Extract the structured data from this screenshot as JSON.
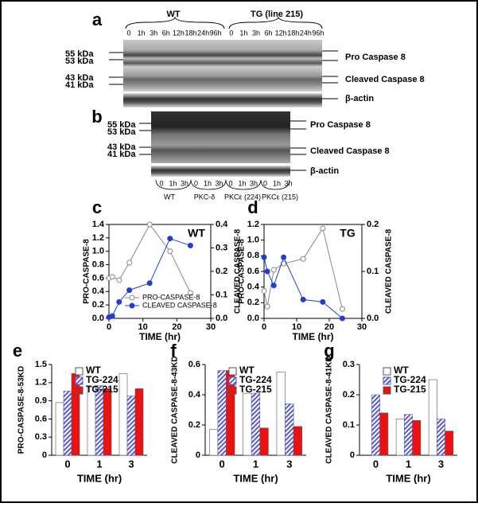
{
  "figure": {
    "a": {
      "letter": "a",
      "groups": [
        "WT",
        "TG (line 215)"
      ],
      "lanes": [
        "0",
        "1h",
        "3h",
        "6h",
        "12h",
        "18h",
        "24h",
        "96h",
        "0",
        "1h",
        "3h",
        "6h",
        "12h",
        "18h",
        "24h",
        "96h"
      ],
      "markers": [
        "55 kDa",
        "53 kDa",
        "43 kDa",
        "41 kDa"
      ],
      "bands": [
        "Pro Caspase 8",
        "Cleaved Caspase 8",
        "β-actin"
      ]
    },
    "b": {
      "letter": "b",
      "lanes": [
        "0",
        "1h",
        "3h",
        "0",
        "1h",
        "3h",
        "0",
        "1h",
        "3h",
        "0",
        "1h",
        "3h"
      ],
      "groups": [
        "WT",
        "PKC-δ",
        "PKCε (224)",
        "PKCε (215)"
      ],
      "markers": [
        "55 kDa",
        "53 kDa",
        "43 kDa",
        "41 kDa"
      ],
      "bands": [
        "Pro Caspase 8",
        "Cleaved Caspase 8",
        "β-actin"
      ]
    }
  },
  "chart_data": [
    {
      "type": "line",
      "panel": "c",
      "title": "WT",
      "xlabel": "TIME (hr)",
      "ylabel": "PRO-CASPASE-8",
      "y2label": "CLEAVED CASPASE-8",
      "x": [
        0,
        1,
        3,
        6,
        12,
        18,
        24
      ],
      "series": [
        {
          "name": "PRO-CASPASE-8",
          "color": "#888888",
          "marker": "open",
          "values": [
            0.6,
            0.62,
            0.57,
            0.83,
            1.4,
            1.0,
            0.38
          ]
        },
        {
          "name": "CLEAVED CASPASE-8",
          "color": "#1f3fd0",
          "marker": "filled",
          "axis": "y2",
          "values": [
            0.005,
            0.01,
            0.07,
            0.12,
            0.15,
            0.34,
            0.31
          ]
        }
      ],
      "xlim": [
        0,
        30
      ],
      "xticks": [
        0,
        10,
        20,
        30
      ],
      "ylim": [
        0,
        1.4
      ],
      "yticks": [
        {
          "value": 0,
          "label": "0.0"
        },
        0.2,
        0.4,
        0.6,
        0.8,
        {
          "value": 1,
          "label": "1.0"
        },
        1.2,
        1.4
      ],
      "y2lim": [
        0,
        0.4
      ],
      "y2ticks": [
        {
          "value": 0,
          "label": "0.0"
        },
        0.1,
        0.2,
        0.3,
        0.4
      ],
      "legend": "lower right"
    },
    {
      "type": "line",
      "panel": "d",
      "title": "TG",
      "xlabel": "TIME (hr)",
      "ylabel": "PRO-CASPASE-8",
      "y2label": "CLEAVED CASPASE-8",
      "x": [
        0,
        1,
        3,
        6,
        12,
        18,
        24
      ],
      "series": [
        {
          "color": "#888888",
          "marker": "open",
          "values": [
            0.35,
            0.15,
            0.62,
            0.7,
            0.76,
            1.15,
            0.12
          ]
        },
        {
          "color": "#1f3fd0",
          "marker": "filled",
          "axis": "y2",
          "values": [
            0.13,
            0.1,
            0.07,
            0.13,
            0.04,
            0.035,
            0.0
          ]
        }
      ],
      "xlim": [
        0,
        30
      ],
      "xticks": [
        0,
        10,
        20,
        30
      ],
      "ylim": [
        0,
        1.2
      ],
      "yticks": [
        {
          "value": 0,
          "label": "0.0"
        },
        0.2,
        0.4,
        0.6,
        0.8,
        {
          "value": 1,
          "label": "1.0"
        },
        1.2
      ],
      "y2lim": [
        0,
        0.2
      ],
      "y2ticks": [
        {
          "value": 0,
          "label": "0.0"
        },
        0.1,
        0.2
      ]
    },
    {
      "type": "bar",
      "panel": "e",
      "xlabel": "TIME (hr)",
      "ylabel": "PRO-CASPASE-8-53KD",
      "categories": [
        "0",
        "1",
        "3"
      ],
      "series": [
        {
          "name": "WT",
          "color": "#ffffff",
          "values": [
            0.87,
            1.13,
            1.35
          ]
        },
        {
          "name": "TG-224",
          "color": "#5a5ad0",
          "hatch": true,
          "values": [
            1.06,
            1.15,
            0.98
          ]
        },
        {
          "name": "TG-215",
          "color": "#ee1111",
          "values": [
            1.35,
            1.1,
            1.1
          ]
        }
      ],
      "ylim": [
        0,
        1.5
      ],
      "yticks": [
        0,
        0.3,
        0.6,
        0.9,
        1.2,
        1.5
      ],
      "legend": "upper left"
    },
    {
      "type": "bar",
      "panel": "f",
      "xlabel": "TIME (hr)",
      "ylabel": "CLEAVED CASPASE-8-43KD",
      "categories": [
        "0",
        "1",
        "3"
      ],
      "series": [
        {
          "name": "WT",
          "color": "#ffffff",
          "values": [
            0.17,
            0.41,
            0.55
          ]
        },
        {
          "name": "TG-224",
          "color": "#5a5ad0",
          "hatch": true,
          "values": [
            0.56,
            0.41,
            0.34
          ]
        },
        {
          "name": "TG-215",
          "color": "#ee1111",
          "values": [
            0.56,
            0.18,
            0.19
          ]
        }
      ],
      "ylim": [
        0,
        0.6
      ],
      "yticks": [
        0,
        0.2,
        0.4,
        0.6
      ],
      "legend": "upper left"
    },
    {
      "type": "bar",
      "panel": "g",
      "xlabel": "TIME (hr)",
      "ylabel": "CLEAVED CASPASE-8-41KD",
      "categories": [
        "0",
        "1",
        "3"
      ],
      "series": [
        {
          "name": "WT",
          "color": "#ffffff",
          "values": [
            0,
            0.12,
            0.25
          ]
        },
        {
          "name": "TG-224",
          "color": "#5a5ad0",
          "hatch": true,
          "values": [
            0.2,
            0.135,
            0.12
          ]
        },
        {
          "name": "TG-215",
          "color": "#ee1111",
          "values": [
            0.14,
            0.115,
            0.08
          ]
        }
      ],
      "ylim": [
        0,
        0.3
      ],
      "yticks": [
        0,
        0.1,
        0.2,
        0.3
      ],
      "legend": "upper left"
    }
  ]
}
